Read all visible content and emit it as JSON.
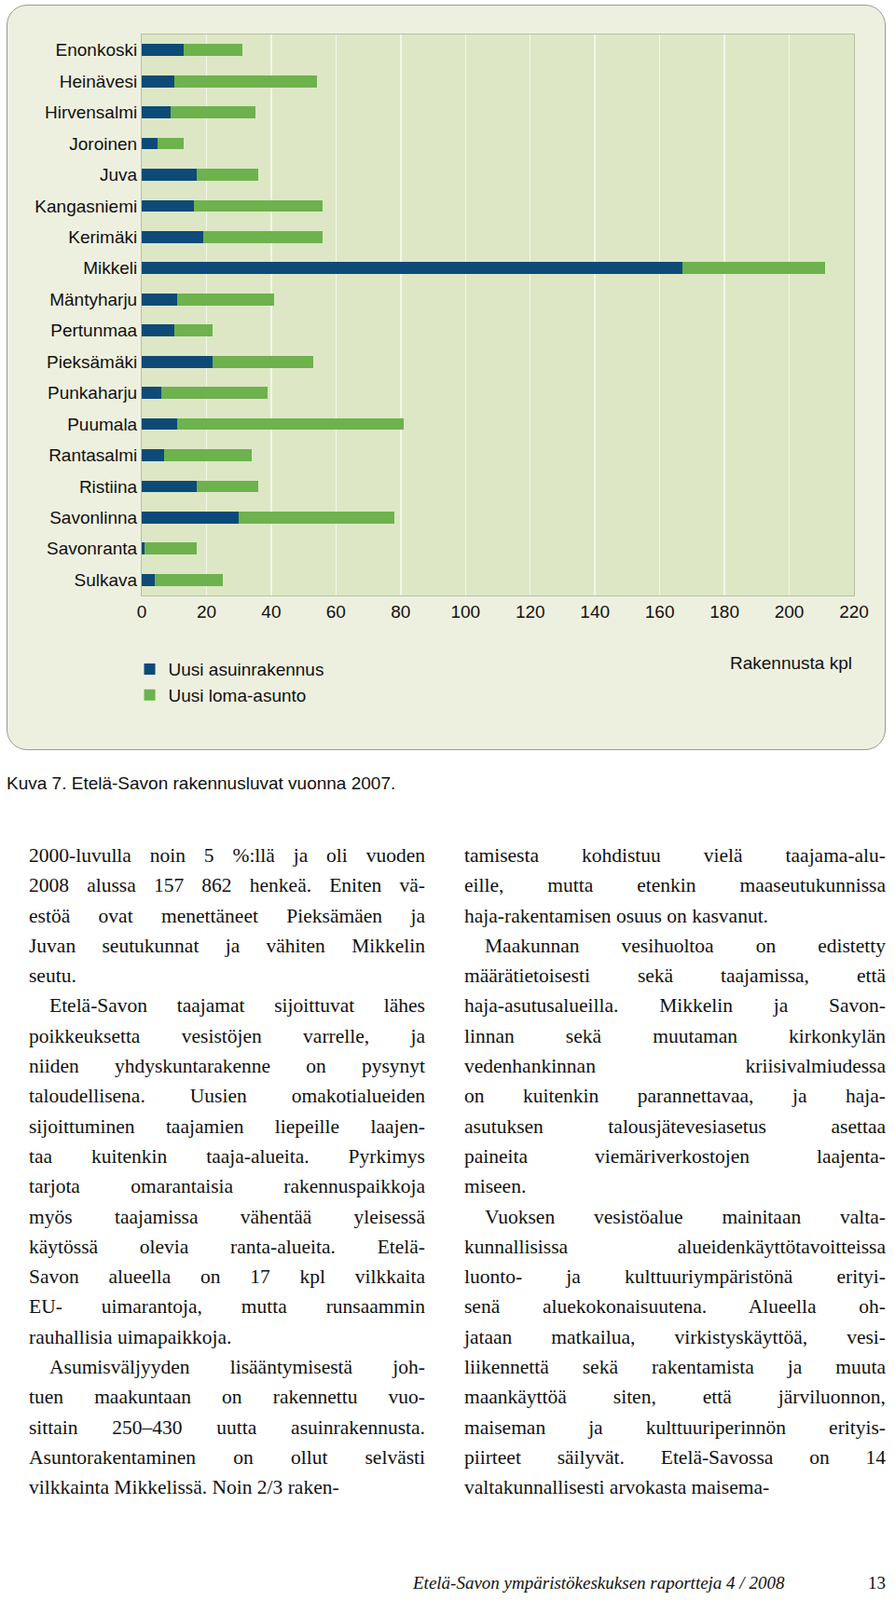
{
  "chart_data": {
    "type": "bar",
    "orientation": "horizontal",
    "stacked": true,
    "categories": [
      "Enonkoski",
      "Heinävesi",
      "Hirvensalmi",
      "Joroinen",
      "Juva",
      "Kangasniemi",
      "Kerimäki",
      "Mikkeli",
      "Mäntyharju",
      "Pertunmaa",
      "Pieksämäki",
      "Punkaharju",
      "Puumala",
      "Rantasalmi",
      "Ristiina",
      "Savonlinna",
      "Savonranta",
      "Sulkava"
    ],
    "series": [
      {
        "name": "Uusi asuinrakennus",
        "color": "#0d4a78",
        "values": [
          13,
          10,
          9,
          5,
          17,
          16,
          19,
          167,
          11,
          10,
          22,
          6,
          11,
          7,
          17,
          30,
          1,
          4
        ]
      },
      {
        "name": "Uusi loma-asunto",
        "color": "#6db24d",
        "values": [
          18,
          44,
          26,
          8,
          19,
          40,
          37,
          44,
          30,
          12,
          31,
          33,
          70,
          27,
          19,
          48,
          16,
          21
        ]
      }
    ],
    "x_label": "Rakennusta kpl",
    "xlim": [
      0,
      220
    ],
    "xticks": [
      0,
      20,
      40,
      60,
      80,
      100,
      120,
      140,
      160,
      180,
      200,
      220
    ],
    "grid": true,
    "legend": "bottom-left"
  },
  "caption": "Kuva 7. Etelä-Savon rakennusluvat vuonna 2007.",
  "columns": [
    [
      [
        "2000-luvulla noin 5 %:llä ja oli vuoden",
        "2008 alussa 157 862 henkeä. Eniten vä-",
        "estöä ovat menettäneet Pieksämäen ja",
        "Juvan seutukunnat ja vähiten Mikkelin",
        "seutu."
      ],
      [
        "Etelä-Savon taajamat sijoittuvat lähes",
        "poikkeuksetta vesistöjen varrelle, ja",
        "niiden yhdyskuntarakenne on pysynyt",
        "taloudellisena. Uusien omakotialueiden",
        "sijoittuminen taajamien liepeille laajen-",
        "taa kuitenkin taaja-alueita. Pyrkimys",
        "tarjota omarantaisia rakennuspaikkoja",
        "myös taajamissa vähentää yleisessä",
        "käytössä olevia ranta-alueita. Etelä-",
        "Savon alueella on 17 kpl vilkkaita",
        "EU- uimarantoja, mutta runsaammin",
        "rauhallisia uimapaikkoja."
      ],
      [
        "Asumisväljyyden lisääntymisestä joh-",
        "tuen maakuntaan on rakennettu vuo-",
        "sittain 250–430 uutta asuinrakennusta.",
        "Asuntorakentaminen on ollut selvästi",
        "vilkkainta Mikkelissä. Noin 2/3 raken-"
      ]
    ],
    [
      [
        "tamisesta kohdistuu vielä taajama-alu-",
        "eille, mutta etenkin maaseutukunnissa",
        "haja-rakentamisen osuus on kasvanut."
      ],
      [
        "Maakunnan vesihuoltoa on edistetty",
        "määrätietoisesti sekä taajamissa, että",
        "haja-asutusalueilla. Mikkelin ja Savon-",
        "linnan sekä muutaman kirkonkylän",
        "vedenhankinnan kriisivalmiudessa",
        "on kuitenkin parannettavaa, ja haja-",
        "asutuksen talousjätevesiasetus asettaa",
        "paineita viemäriverkostojen laajenta-",
        "miseen."
      ],
      [
        "Vuoksen vesistöalue mainitaan valta-",
        "kunnallisissa alueidenkäyttötavoitteissa",
        "luonto- ja kulttuuriympäristönä erityi-",
        "senä aluekokonaisuutena. Alueella oh-",
        "jataan matkailua, virkistyskäyttöä, vesi-",
        "liikennettä sekä rakentamista ja muuta",
        "maankäyttöä siten, että järviluonnon,",
        "maiseman ja kulttuuriperinnön erityis-",
        "piirteet säilyvät. Etelä-Savossa on 14",
        "valtakunnallisesti arvokasta maisema-"
      ]
    ]
  ],
  "footer": {
    "text": "Etelä-Savon ympäristökeskuksen raportteja 4 / 2008",
    "page": 13
  }
}
